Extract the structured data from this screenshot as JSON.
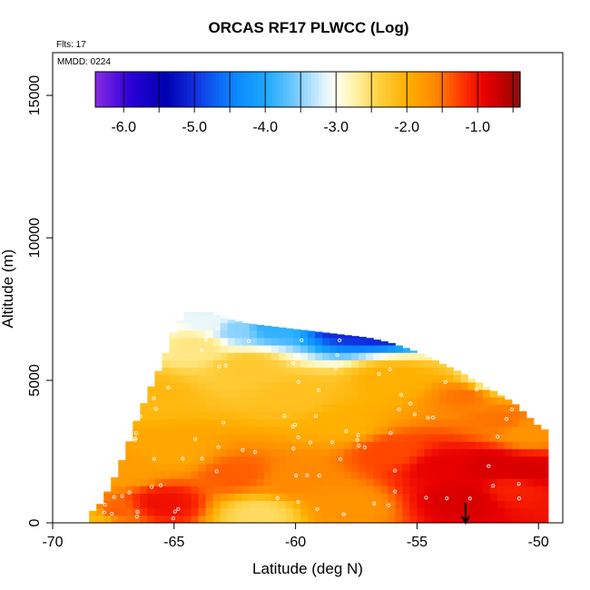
{
  "chart_data": {
    "type": "heatmap",
    "title": "ORCAS RF17 PLWCC (Log)",
    "flights_note": "Flts: 17",
    "date_note": "MMDD: 0224",
    "xlabel": "Latitude (deg N)",
    "ylabel": "Altitude (m)",
    "xlim": [
      -70,
      -49
    ],
    "ylim": [
      0,
      16500
    ],
    "x_ticks": [
      -70,
      -65,
      -60,
      -55,
      -50
    ],
    "y_ticks": [
      0,
      5000,
      10000,
      15000
    ],
    "colorbar": {
      "range": [
        -6.4,
        -0.4
      ],
      "ticks": [
        -6.0,
        -5.0,
        -4.0,
        -3.0,
        -2.0,
        -1.0
      ],
      "tick_labels": [
        "-6.0",
        "-5.0",
        "-4.0",
        "-3.0",
        "-2.0",
        "-1.0"
      ],
      "stops": [
        {
          "value": -6.4,
          "color": "#8a2be2"
        },
        {
          "value": -5.9,
          "color": "#2a00d8"
        },
        {
          "value": -5.4,
          "color": "#0000b0"
        },
        {
          "value": -5.0,
          "color": "#1030e0"
        },
        {
          "value": -4.5,
          "color": "#0a80ff"
        },
        {
          "value": -4.0,
          "color": "#1aa8ff"
        },
        {
          "value": -3.6,
          "color": "#6ec8ff"
        },
        {
          "value": -3.2,
          "color": "#d8f0ff"
        },
        {
          "value": -3.0,
          "color": "#fffff0"
        },
        {
          "value": -2.7,
          "color": "#fff0a0"
        },
        {
          "value": -2.4,
          "color": "#ffd040"
        },
        {
          "value": -2.0,
          "color": "#ffb000"
        },
        {
          "value": -1.6,
          "color": "#ff8a00"
        },
        {
          "value": -1.2,
          "color": "#ff3000"
        },
        {
          "value": -0.9,
          "color": "#e80000"
        },
        {
          "value": -0.6,
          "color": "#b80000"
        },
        {
          "value": -0.4,
          "color": "#8a1010"
        }
      ]
    },
    "envelope": {
      "latitudes": [
        -68.5,
        -68,
        -67.5,
        -67,
        -66.5,
        -66,
        -65.5,
        -65,
        -64.5,
        -64,
        -63.5,
        -63,
        -62,
        -61,
        -60,
        -59,
        -58,
        -57,
        -56,
        -55,
        -54,
        -53,
        -52,
        -51,
        -50.5,
        -50,
        -49.6
      ],
      "top_altitude": [
        300,
        700,
        1500,
        2500,
        3700,
        4700,
        5600,
        6800,
        7400,
        7400,
        7400,
        7200,
        7000,
        6900,
        6800,
        6700,
        6600,
        6500,
        6300,
        6000,
        5600,
        5200,
        4700,
        4200,
        3800,
        3400,
        3200
      ]
    },
    "anchor_points": [
      {
        "lat": -68.2,
        "alt": 200,
        "value": -2.1
      },
      {
        "lat": -67.5,
        "alt": 400,
        "value": -1.4
      },
      {
        "lat": -65.5,
        "alt": 700,
        "value": -1.0
      },
      {
        "lat": -67.0,
        "alt": 1800,
        "value": -1.8
      },
      {
        "lat": -65.0,
        "alt": 2500,
        "value": -1.9
      },
      {
        "lat": -66.0,
        "alt": 4500,
        "value": -2.1
      },
      {
        "lat": -64.0,
        "alt": 6300,
        "value": -2.6
      },
      {
        "lat": -63.5,
        "alt": 7000,
        "value": -3.1
      },
      {
        "lat": -62.5,
        "alt": 6800,
        "value": -3.5
      },
      {
        "lat": -61.0,
        "alt": 6900,
        "value": -3.9
      },
      {
        "lat": -58.0,
        "alt": 7000,
        "value": -5.1
      },
      {
        "lat": -56.5,
        "alt": 7000,
        "value": -5.3
      },
      {
        "lat": -62.0,
        "alt": 5500,
        "value": -2.3
      },
      {
        "lat": -60.0,
        "alt": 4500,
        "value": -2.2
      },
      {
        "lat": -58.0,
        "alt": 3500,
        "value": -2.0
      },
      {
        "lat": -56.0,
        "alt": 2500,
        "value": -1.3
      },
      {
        "lat": -54.0,
        "alt": 2000,
        "value": -0.9
      },
      {
        "lat": -52.0,
        "alt": 2000,
        "value": -0.8
      },
      {
        "lat": -50.5,
        "alt": 1800,
        "value": -0.8
      },
      {
        "lat": -53.0,
        "alt": 800,
        "value": -0.8
      },
      {
        "lat": -51.0,
        "alt": 1200,
        "value": -1.1
      },
      {
        "lat": -60.0,
        "alt": 1500,
        "value": -1.6
      },
      {
        "lat": -58.0,
        "alt": 600,
        "value": -1.7
      },
      {
        "lat": -61.5,
        "alt": 300,
        "value": -2.5
      },
      {
        "lat": -62.5,
        "alt": 1700,
        "value": -1.4
      },
      {
        "lat": -56.0,
        "alt": 5000,
        "value": -2.0
      },
      {
        "lat": -53.0,
        "alt": 4500,
        "value": -1.5
      },
      {
        "lat": -51.5,
        "alt": 3600,
        "value": -1.5
      },
      {
        "lat": -52.0,
        "alt": 5000,
        "value": -2.8
      },
      {
        "lat": -50.5,
        "alt": 3200,
        "value": -1.7
      }
    ],
    "markers": [
      {
        "type": "down-arrow",
        "lat": -53.0,
        "alt_top": 700,
        "alt_bottom": 0
      }
    ]
  }
}
